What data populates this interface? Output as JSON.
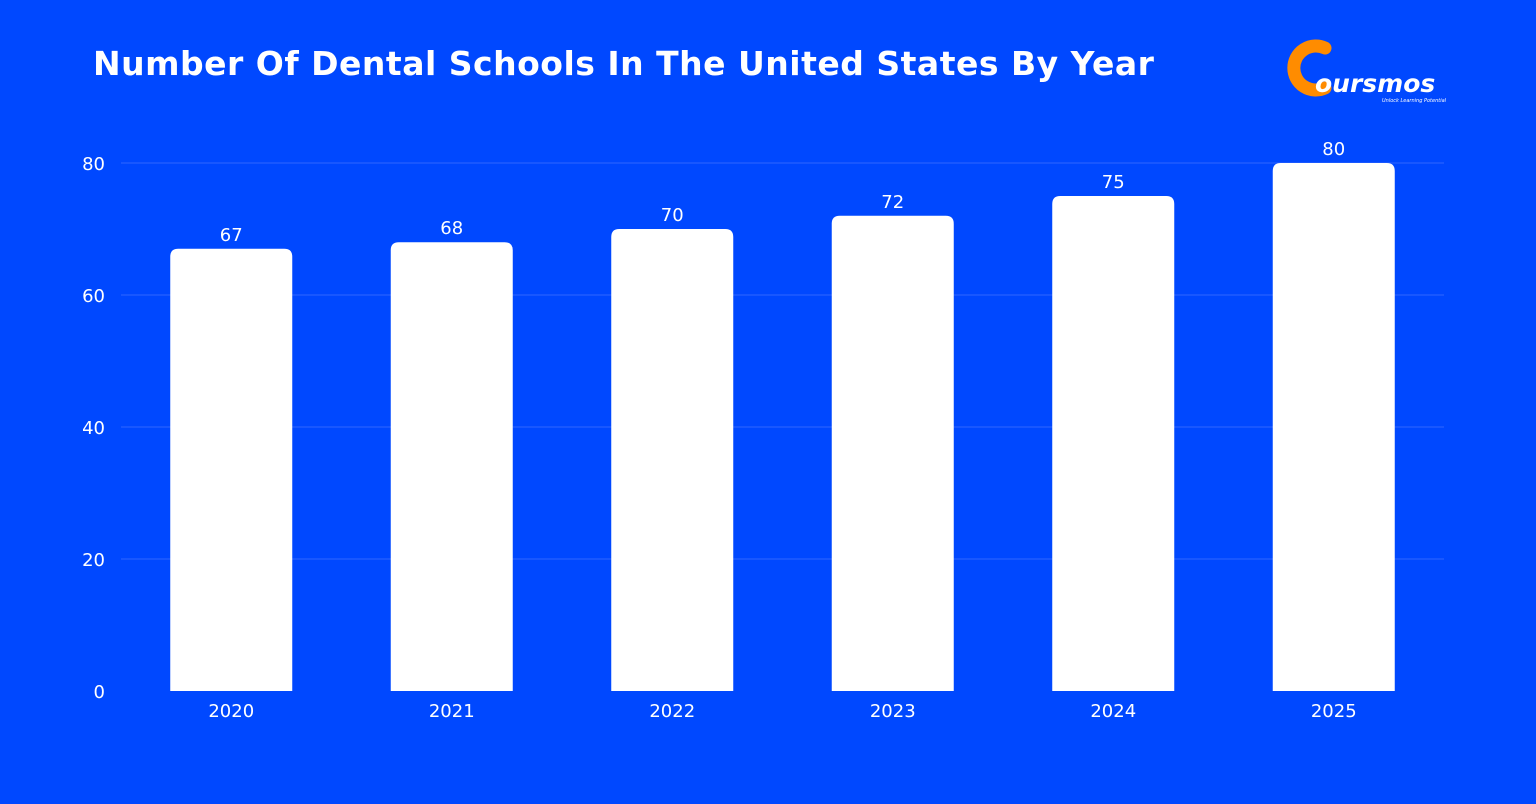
{
  "logo": {
    "name": "Coursmos",
    "tagline": "Unlock Learning Potential",
    "accent_color": "#ff8c00"
  },
  "colors": {
    "background": "#0048ff",
    "bar": "#ffffff",
    "grid": "#2f66ff"
  },
  "chart_data": {
    "type": "bar",
    "title": "Number Of Dental Schools In The United States By Year",
    "xlabel": "",
    "ylabel": "",
    "categories": [
      "2020",
      "2021",
      "2022",
      "2023",
      "2024",
      "2025"
    ],
    "values": [
      67,
      68,
      70,
      72,
      75,
      80
    ],
    "ylim": [
      0,
      80
    ],
    "yticks": [
      0,
      20,
      40,
      60,
      80
    ],
    "grid": true,
    "data_labels": true,
    "legend": "none"
  }
}
